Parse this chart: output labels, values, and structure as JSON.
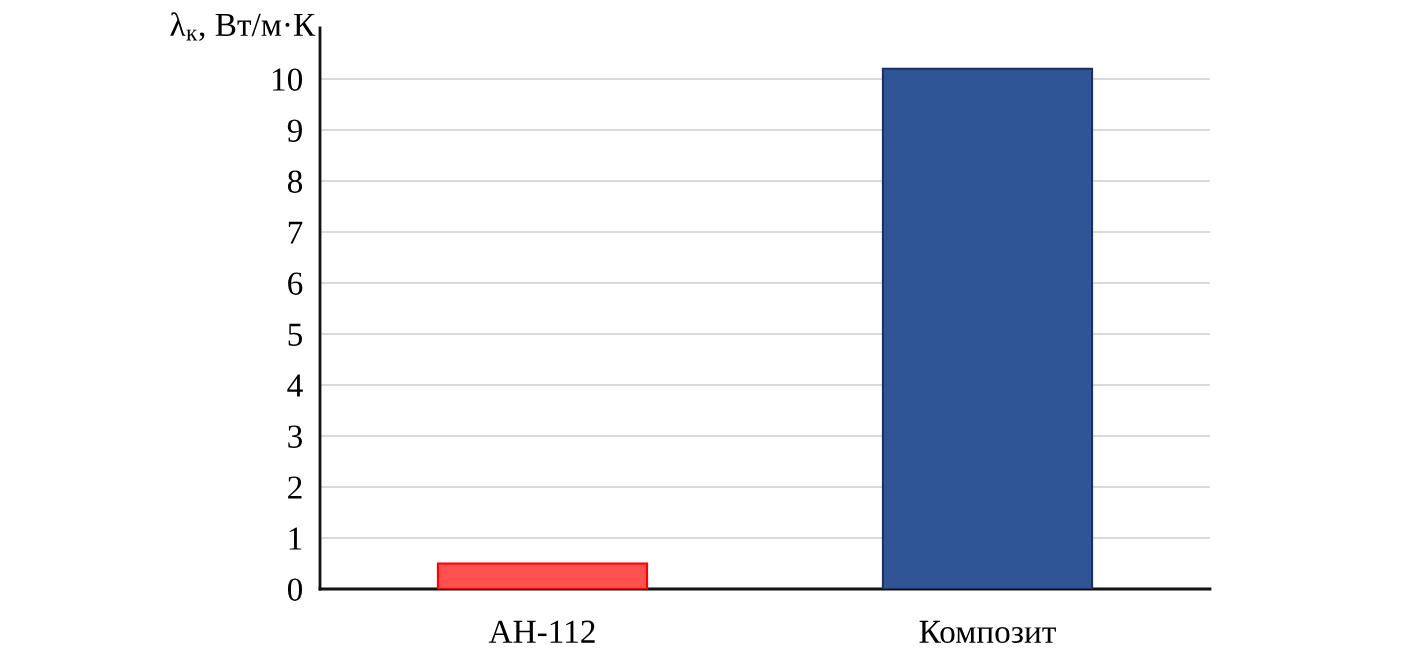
{
  "chart_data": {
    "type": "bar",
    "ylabel": "λ$_{к}$, Вт/м·К",
    "categories": [
      "АН-112",
      "Композит"
    ],
    "values": [
      0.5,
      10.2
    ],
    "colors": [
      "#ff5050",
      "#2f5597"
    ],
    "ylim": [
      0,
      11
    ],
    "yticks": [
      0,
      1,
      2,
      3,
      4,
      5,
      6,
      7,
      8,
      9,
      10
    ],
    "grid": "y"
  }
}
